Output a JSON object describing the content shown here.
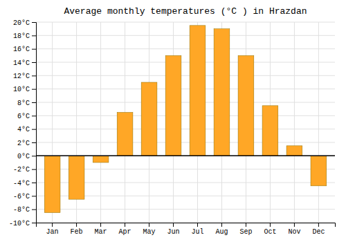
{
  "chart_data": {
    "type": "bar",
    "title": "Average monthly temperatures (°C ) in Hrazdan",
    "categories": [
      "Jan",
      "Feb",
      "Mar",
      "Apr",
      "May",
      "Jun",
      "Jul",
      "Aug",
      "Sep",
      "Oct",
      "Nov",
      "Dec"
    ],
    "values": [
      -8.5,
      -6.5,
      -1.0,
      6.5,
      11.0,
      15.0,
      19.5,
      19.0,
      15.0,
      7.5,
      1.5,
      -4.5
    ],
    "color": "#FFA726",
    "ylim": [
      -10,
      20
    ],
    "yticks": [
      {
        "value": -10,
        "label": "-10°C"
      },
      {
        "value": -8,
        "label": "-8°C"
      },
      {
        "value": -6,
        "label": "-6°C"
      },
      {
        "value": -4,
        "label": "-4°C"
      },
      {
        "value": -2,
        "label": "-2°C"
      },
      {
        "value": 0,
        "label": "0°C"
      },
      {
        "value": 2,
        "label": "2°C"
      },
      {
        "value": 4,
        "label": "4°C"
      },
      {
        "value": 6,
        "label": "6°C"
      },
      {
        "value": 8,
        "label": "8°C"
      },
      {
        "value": 10,
        "label": "10°C"
      },
      {
        "value": 12,
        "label": "12°C"
      },
      {
        "value": 14,
        "label": "14°C"
      },
      {
        "value": 16,
        "label": "16°C"
      },
      {
        "value": 18,
        "label": "18°C"
      },
      {
        "value": 20,
        "label": "20°C"
      }
    ],
    "grid": true
  }
}
